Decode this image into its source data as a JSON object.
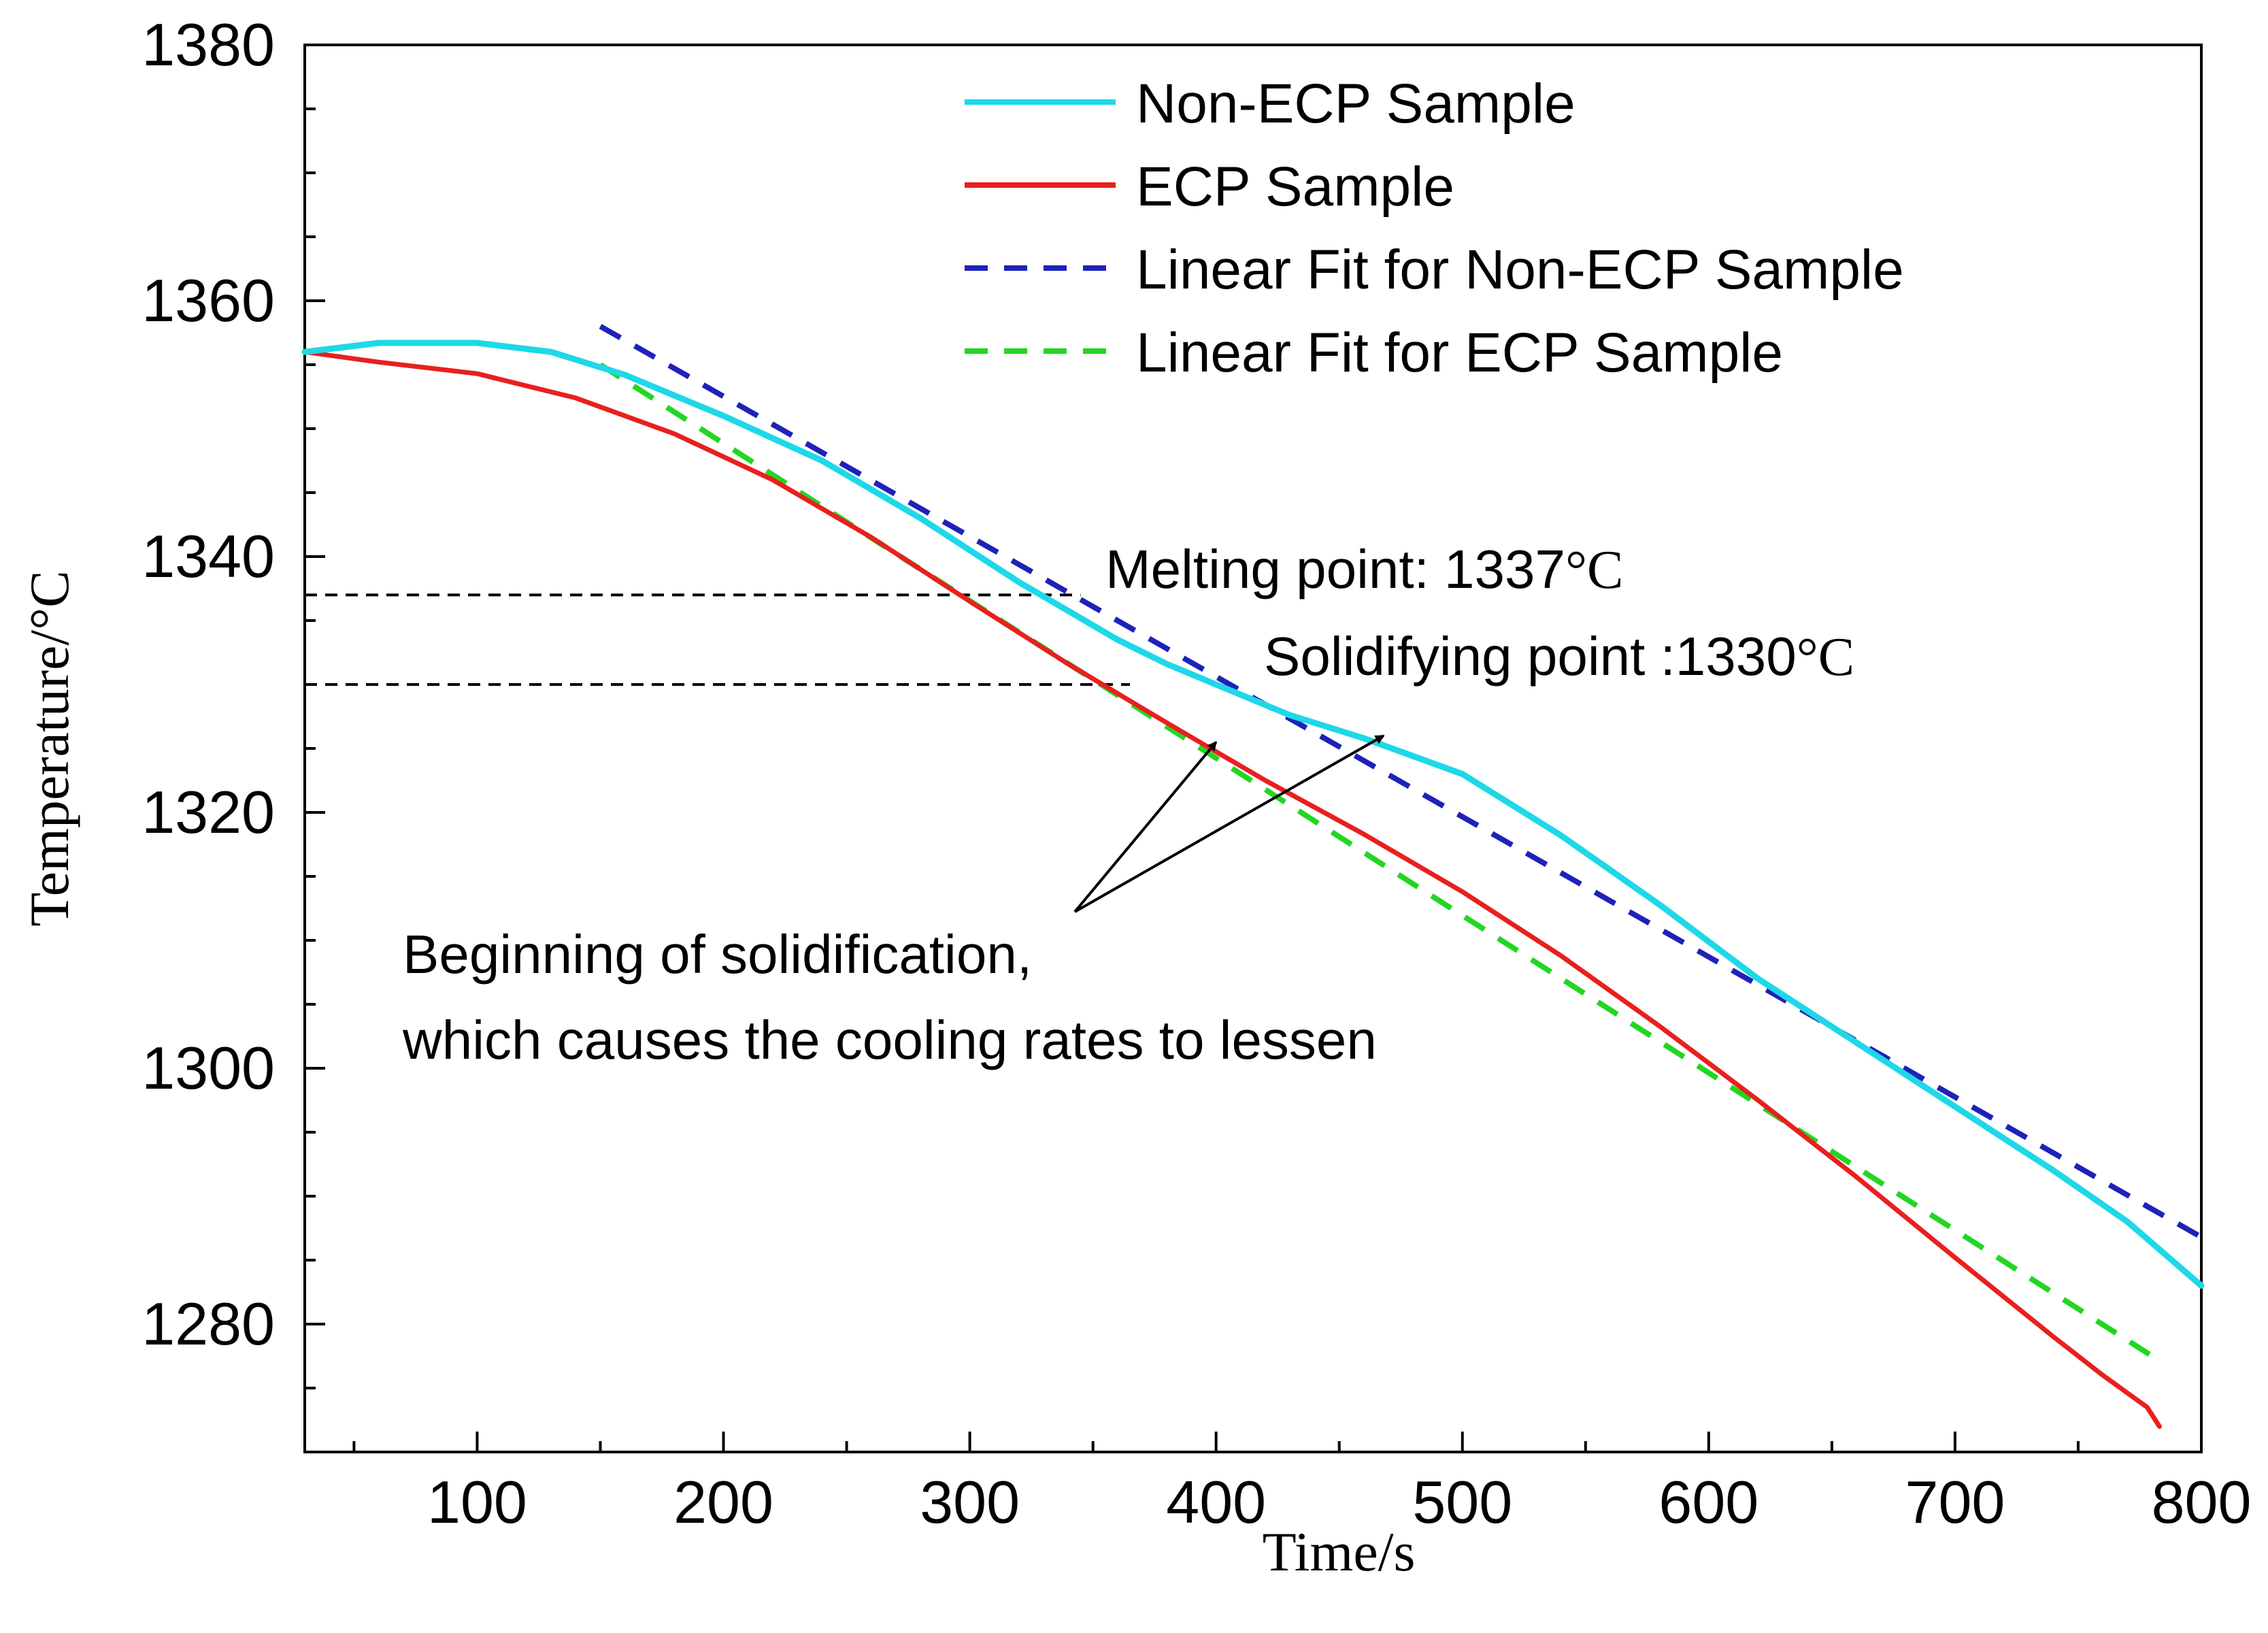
{
  "chart_data": {
    "type": "line",
    "title": "",
    "xlabel": "Time/s",
    "ylabel": "Temperature/°C",
    "xlim": [
      30,
      800
    ],
    "ylim": [
      1270,
      1380
    ],
    "xticks": [
      100,
      200,
      300,
      400,
      500,
      600,
      700,
      800
    ],
    "xtick_labels": [
      "100",
      "200",
      "300",
      "400",
      "500",
      "600",
      "700",
      "800"
    ],
    "yticks": [
      1280,
      1300,
      1320,
      1340,
      1360,
      1380
    ],
    "ytick_labels": [
      "1280",
      "1300",
      "1320",
      "1340",
      "1360",
      "1380"
    ],
    "grid": false,
    "legend_position": "top-center",
    "series": [
      {
        "name": "Non-ECP Sample",
        "color": "#1ed8e8",
        "style": "solid",
        "x": [
          30,
          60,
          100,
          130,
          160,
          200,
          240,
          280,
          320,
          360,
          380,
          400,
          430,
          460,
          500,
          540,
          580,
          620,
          660,
          700,
          740,
          770,
          800
        ],
        "y": [
          1356,
          1356.7,
          1356.7,
          1356,
          1354.2,
          1351,
          1347.5,
          1343,
          1338,
          1333.5,
          1331.6,
          1330,
          1327.6,
          1325.8,
          1323,
          1318.2,
          1312.8,
          1307,
          1302,
          1297,
          1292,
          1288,
          1283
        ]
      },
      {
        "name": "ECP Sample",
        "color": "#e8201e",
        "style": "solid",
        "x": [
          30,
          60,
          100,
          140,
          180,
          220,
          260,
          300,
          340,
          380,
          420,
          460,
          500,
          540,
          580,
          620,
          660,
          700,
          740,
          760,
          778,
          783
        ],
        "y": [
          1356,
          1355.2,
          1354.3,
          1352.4,
          1349.6,
          1346,
          1341.5,
          1336.5,
          1331.6,
          1327,
          1322.5,
          1318.3,
          1313.8,
          1308.8,
          1303.3,
          1297.5,
          1291.5,
          1285.2,
          1279,
          1276,
          1273.5,
          1272
        ]
      },
      {
        "name": "Linear Fit for Non-ECP Sample",
        "color": "#1e22b8",
        "style": "dashed",
        "x": [
          150,
          800
        ],
        "y": [
          1358,
          1286.8
        ]
      },
      {
        "name": "Linear Fit for ECP Sample",
        "color": "#22d622",
        "style": "dashed",
        "x": [
          150,
          780
        ],
        "y": [
          1355,
          1277.5
        ]
      }
    ],
    "reference_lines": [
      {
        "y": 1337,
        "x_end": 345,
        "style": "dashed",
        "color": "#000000"
      },
      {
        "y": 1330,
        "x_end": 365,
        "style": "dashed",
        "color": "#000000"
      }
    ],
    "annotations": {
      "melting_prefix": "Melting point: 1337",
      "melting_unit": "°C",
      "solidifying_prefix": "Solidifying point :1330",
      "solidifying_unit": "°C",
      "solidification_line1": "Beginning of solidification,",
      "solidification_line2": "which causes the cooling rates to lessen",
      "arrow_targets": [
        {
          "x": 400,
          "y": 1325.5
        },
        {
          "x": 468,
          "y": 1326
        }
      ]
    }
  }
}
